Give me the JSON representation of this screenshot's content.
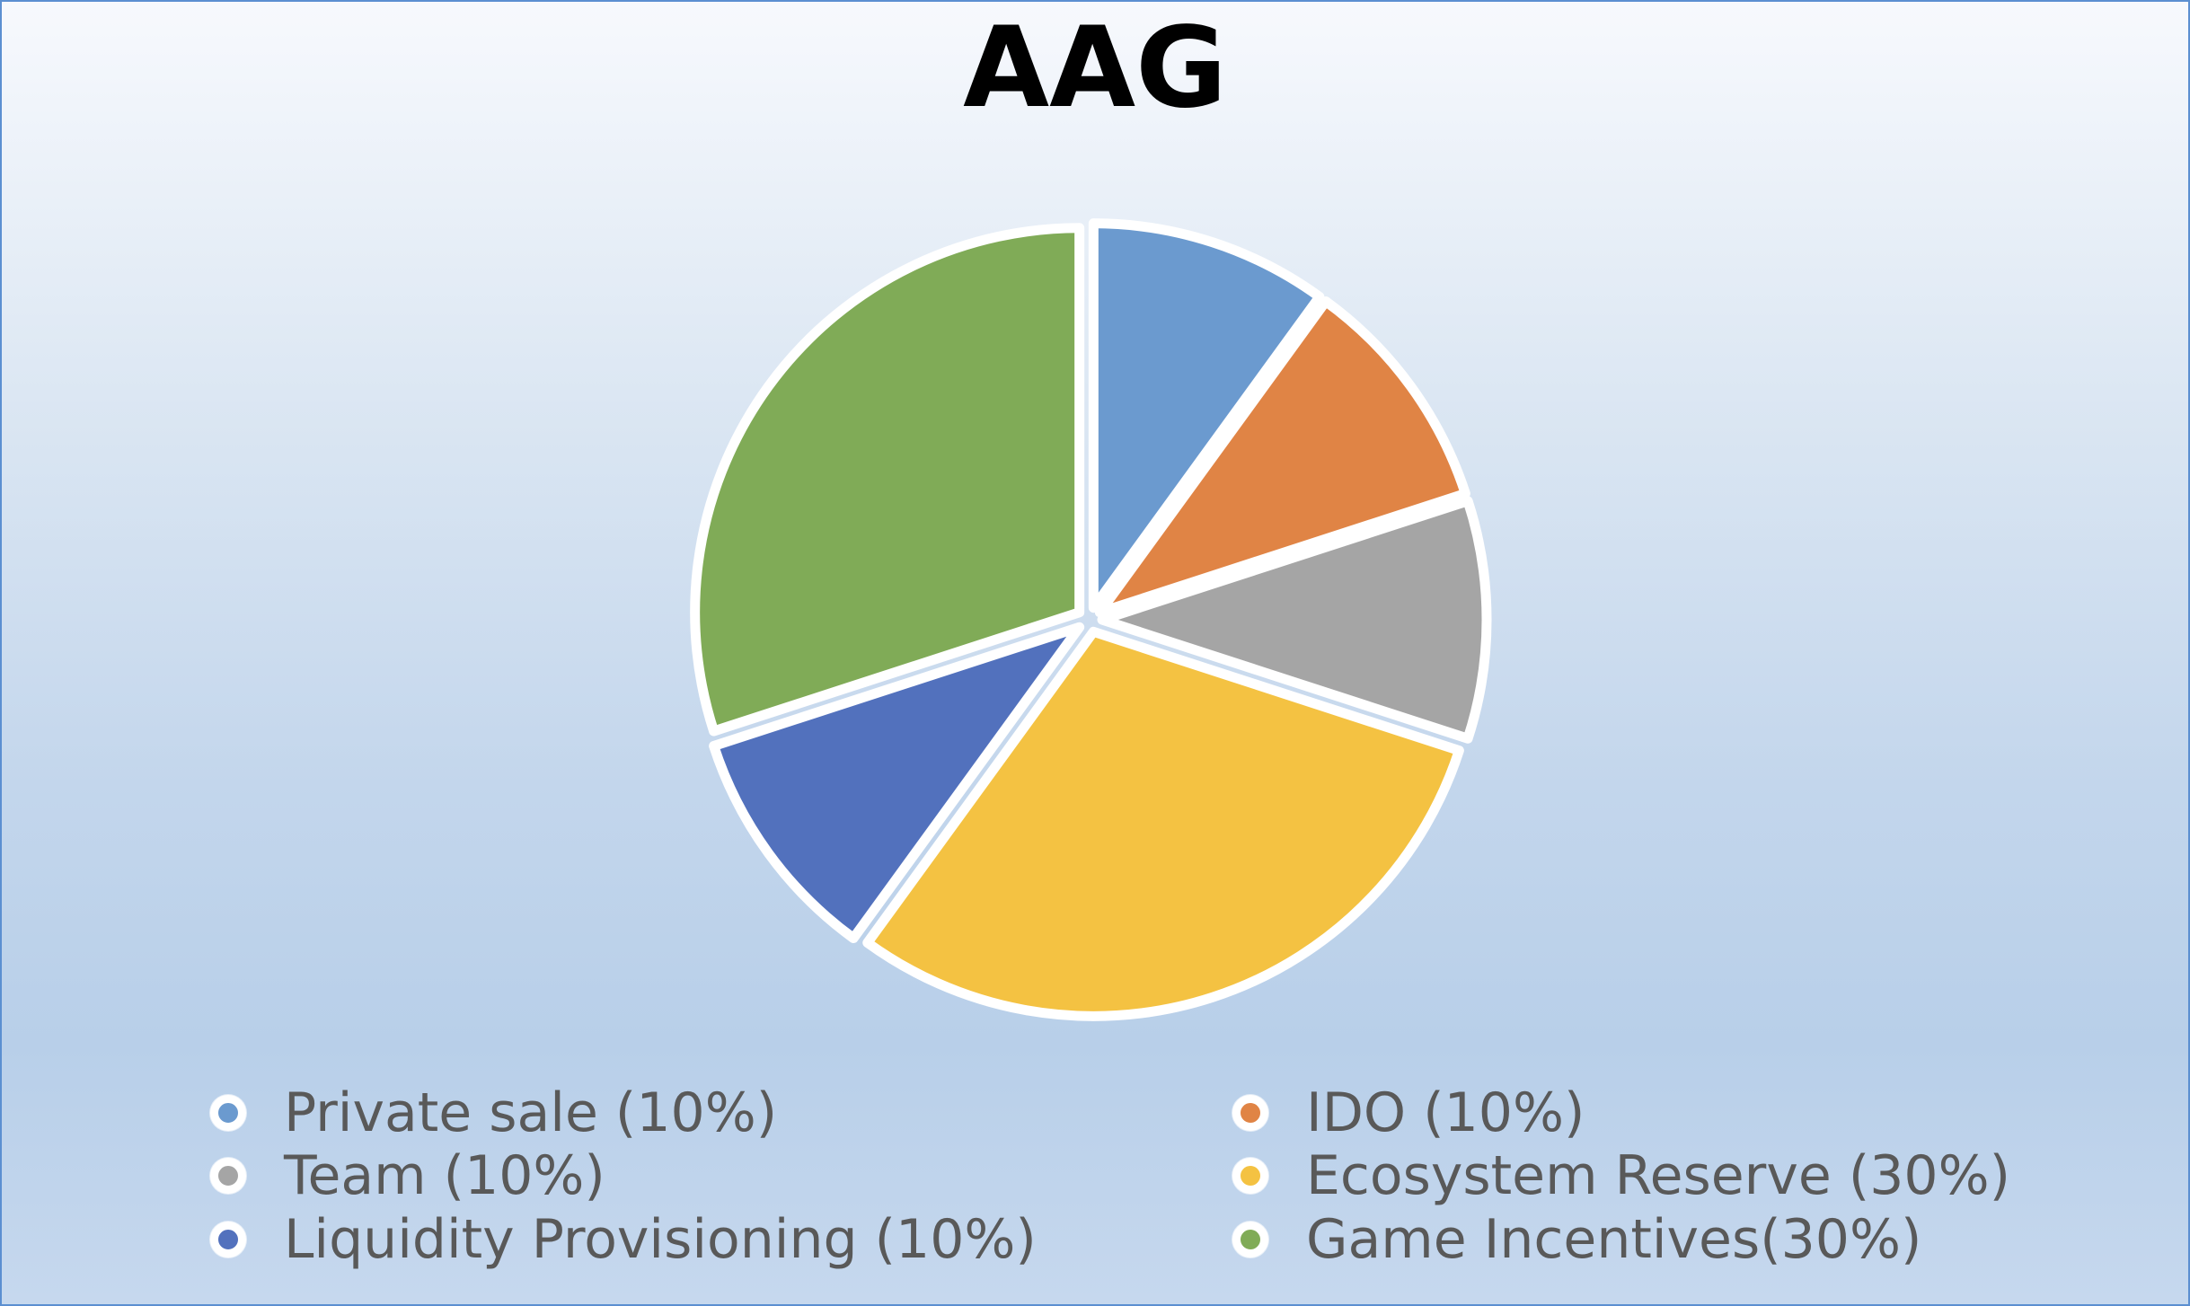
{
  "chart_data": {
    "type": "pie",
    "title": "AAG",
    "categories": [
      "Private sale (10%)",
      "IDO (10%)",
      "Team (10%)",
      "Ecosystem Reserve (30%)",
      "Liquidity Provisioning (10%)",
      "Game Incentives(30%)"
    ],
    "values": [
      10,
      10,
      10,
      30,
      10,
      30
    ],
    "colors": [
      "#6b9acf",
      "#e08445",
      "#a5a5a5",
      "#f4c242",
      "#5271bd",
      "#80ab57"
    ],
    "legend": "bottom",
    "exploded": true
  }
}
